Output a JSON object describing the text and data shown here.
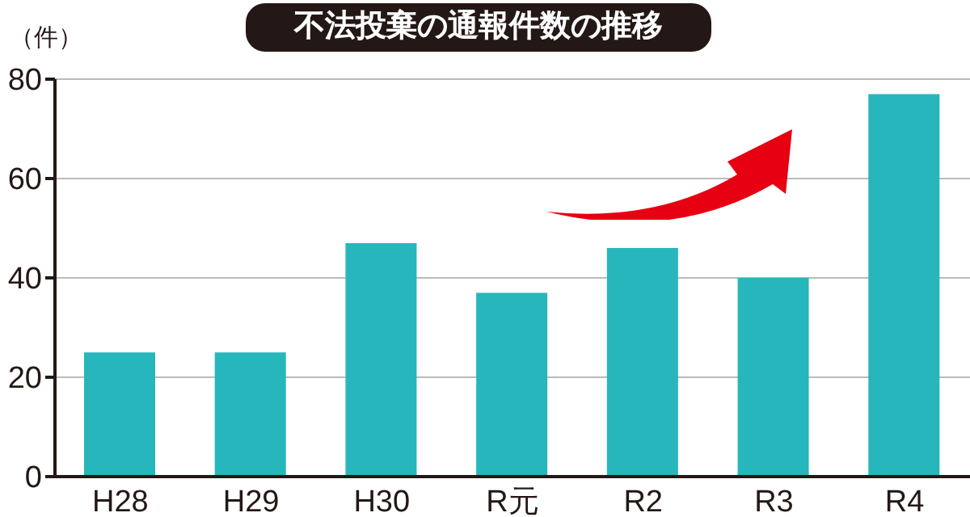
{
  "chart_data": {
    "type": "bar",
    "title": "不法投棄の通報件数の推移",
    "ylabel": "（件）",
    "categories": [
      "H28",
      "H29",
      "H30",
      "R元",
      "R2",
      "R3",
      "R4"
    ],
    "values": [
      25,
      25,
      47,
      37,
      46,
      40,
      77
    ],
    "color": "#27b6bc",
    "ylim": [
      0,
      80
    ],
    "yticks": [
      0,
      20,
      40,
      60,
      80
    ],
    "grid": "y"
  }
}
